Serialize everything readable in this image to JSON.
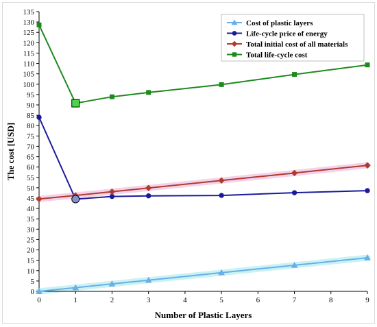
{
  "chart_data": {
    "type": "line",
    "title": "",
    "xlabel": "Number of Plastic Layers",
    "ylabel": "The cost [USD]",
    "xlim": [
      0,
      9
    ],
    "ylim": [
      0,
      135
    ],
    "x_ticks": [
      0,
      1,
      2,
      3,
      4,
      5,
      6,
      7,
      8,
      9
    ],
    "y_ticks": [
      0,
      5,
      10,
      15,
      20,
      25,
      30,
      35,
      40,
      45,
      50,
      55,
      60,
      65,
      70,
      75,
      80,
      85,
      90,
      95,
      100,
      105,
      110,
      115,
      120,
      125,
      130,
      135
    ],
    "grid": false,
    "legend_position": "top-right",
    "series": [
      {
        "name": "Cost of plastic layers",
        "marker": "triangle",
        "color": "#6aaee6",
        "glow": "#c8f2f4",
        "x": [
          0,
          1,
          2,
          3,
          5,
          7,
          9
        ],
        "values": [
          0,
          1.8,
          3.6,
          5.4,
          9,
          12.6,
          16.2
        ]
      },
      {
        "name": "Life-cycle price of energy",
        "marker": "circle",
        "color": "#1a1a9e",
        "glow": null,
        "x": [
          0,
          1,
          2,
          3,
          5,
          7,
          9
        ],
        "values": [
          84,
          44.5,
          45.8,
          46.1,
          46.3,
          47.6,
          48.6
        ]
      },
      {
        "name": "Total initial cost of all materials",
        "marker": "diamond",
        "color": "#b03a2e",
        "glow": "#f4d2ea",
        "x": [
          0,
          1,
          2,
          3,
          5,
          7,
          9
        ],
        "values": [
          44.6,
          46.3,
          48.1,
          49.9,
          53.5,
          57.1,
          60.8
        ]
      },
      {
        "name": "Total life-cycle cost",
        "marker": "square",
        "color": "#1e8a1e",
        "glow": null,
        "x": [
          0,
          1,
          2,
          3,
          5,
          7,
          9
        ],
        "values": [
          128.6,
          90.8,
          93.9,
          96,
          99.8,
          104.7,
          109.3
        ]
      }
    ]
  }
}
